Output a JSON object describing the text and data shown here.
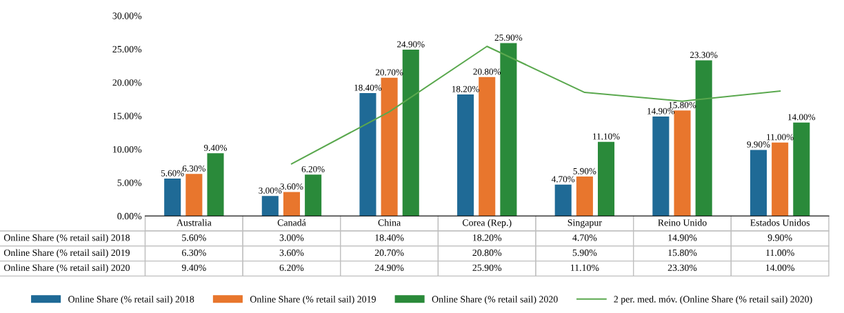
{
  "chart_data": {
    "type": "bar",
    "categories": [
      "Australia",
      "Canadá",
      "China",
      "Corea (Rep.)",
      "Singapur",
      "Reino Unido",
      "Estados Unidos"
    ],
    "series": [
      {
        "name": "Online Share (% retail sail) 2018",
        "color": "#1f6a96",
        "values": [
          5.6,
          3.0,
          18.4,
          18.2,
          4.7,
          14.9,
          9.9
        ],
        "value_labels": [
          "5.60%",
          "3.00%",
          "18.40%",
          "18.20%",
          "4.70%",
          "14.90%",
          "9.90%"
        ]
      },
      {
        "name": "Online Share (% retail sail) 2019",
        "color": "#e8762d",
        "values": [
          6.3,
          3.6,
          20.7,
          20.8,
          5.9,
          15.8,
          11.0
        ],
        "value_labels": [
          "6.30%",
          "3.60%",
          "20.70%",
          "20.80%",
          "5.90%",
          "15.80%",
          "11.00%"
        ]
      },
      {
        "name": "Online Share (% retail sail) 2020",
        "color": "#2a8a3a",
        "values": [
          9.4,
          6.2,
          24.9,
          25.9,
          11.1,
          23.3,
          14.0
        ],
        "value_labels": [
          "9.40%",
          "6.20%",
          "24.90%",
          "25.90%",
          "11.10%",
          "23.30%",
          "14.00%"
        ]
      },
      {
        "name": "2 per. med. móv. (Online Share (% retail sail) 2020)",
        "type": "line",
        "color": "#5aa84e",
        "values": [
          null,
          7.8,
          15.6,
          25.4,
          18.5,
          17.2,
          18.7
        ]
      }
    ],
    "ylim": [
      0,
      30
    ],
    "yticks": [
      {
        "value": 0,
        "label": "0.00%"
      },
      {
        "value": 5,
        "label": "5.00%"
      },
      {
        "value": 10,
        "label": "10.00%"
      },
      {
        "value": 15,
        "label": "15.00%"
      },
      {
        "value": 20,
        "label": "20.00%"
      },
      {
        "value": 25,
        "label": "25.00%"
      },
      {
        "value": 30,
        "label": "30.00%"
      }
    ],
    "grid": false,
    "legend": "bottom",
    "marker": "none",
    "line_style": "solid"
  }
}
